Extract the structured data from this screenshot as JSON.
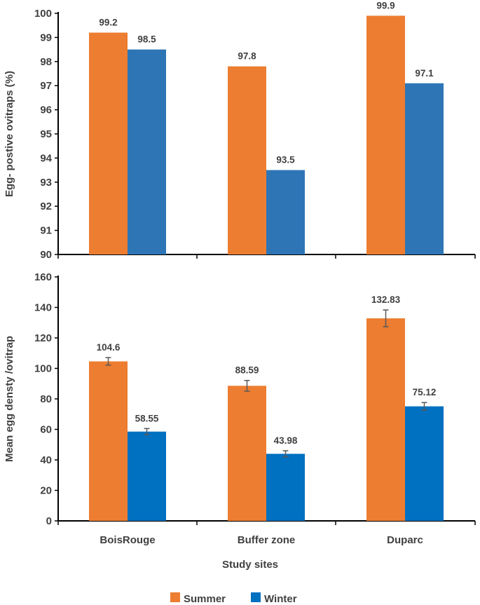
{
  "chart_data": [
    {
      "type": "bar",
      "ylabel": "Egg- postive ovitraps (%)",
      "xlabel": "",
      "ylim": [
        90,
        100
      ],
      "ytick_step": 1,
      "categories": [
        "BoisRouge",
        "Buffer zone",
        "Duparc"
      ],
      "series": [
        {
          "name": "Summer",
          "color": "#ED7D31",
          "values": [
            99.2,
            97.8,
            99.9
          ],
          "labels": [
            "99.2",
            "97.8",
            "99.9"
          ]
        },
        {
          "name": "Winter",
          "color": "#2E75B6",
          "values": [
            98.5,
            93.5,
            97.1
          ],
          "labels": [
            "98.5",
            "93.5",
            "97.1"
          ]
        }
      ]
    },
    {
      "type": "bar",
      "ylabel": "Mean egg densty /ovitrap",
      "xlabel": "Study sites",
      "ylim": [
        0,
        160
      ],
      "ytick_step": 20,
      "categories": [
        "BoisRouge",
        "Buffer zone",
        "Duparc"
      ],
      "series": [
        {
          "name": "Summer",
          "color": "#ED7D31",
          "values": [
            104.6,
            88.59,
            132.83
          ],
          "labels": [
            "104.6",
            "88.59",
            "132.83"
          ],
          "errors": [
            2.5,
            3.5,
            5.5
          ]
        },
        {
          "name": "Winter",
          "color": "#0070C0",
          "values": [
            58.55,
            43.98,
            75.12
          ],
          "labels": [
            "58.55",
            "43.98",
            "75.12"
          ],
          "errors": [
            2,
            2,
            2.5
          ]
        }
      ]
    }
  ],
  "legend": [
    {
      "label": "Summer",
      "color": "#ED7D31"
    },
    {
      "label": "Winter",
      "color": "#0070C0"
    }
  ]
}
